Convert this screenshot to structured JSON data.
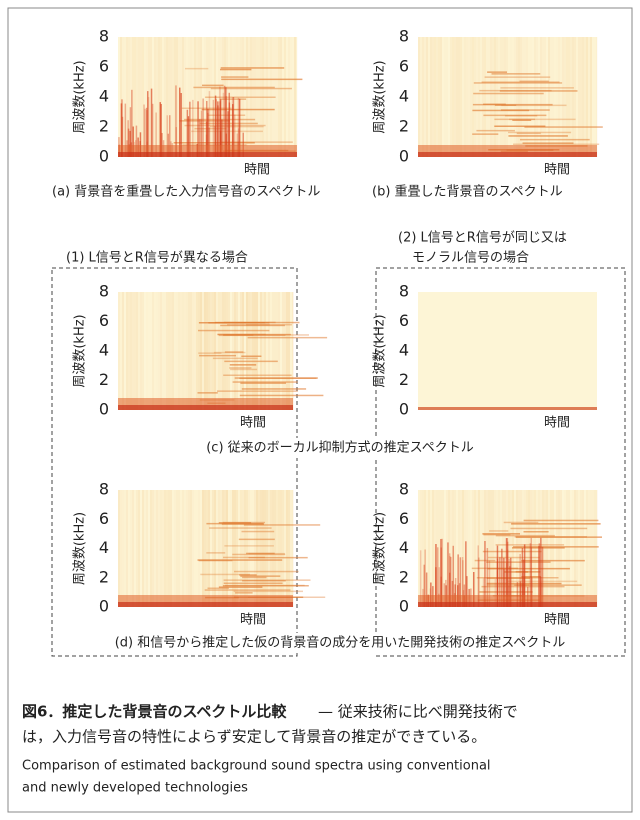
{
  "axes": {
    "y_label": "周波数(kHz)",
    "x_label": "時間",
    "yticks": [
      0,
      2,
      4,
      6,
      8
    ]
  },
  "top_captions": [
    "(a) 背景音を重畳した入力信号音のスペクトル",
    "(b) 重畳した背景音のスペクトル"
  ],
  "case_1": "(1) L信号とR信号が異なる場合",
  "case_2": [
    "(2) L信号とR信号が同じ又は",
    "モノラル信号の場合"
  ],
  "row_captions": [
    "(c) 従来のボーカル抑制方式の推定スペクトル",
    "(d) 和信号から推定した仮の背景音の成分を用いた開発技術の推定スペクトル"
  ],
  "figure_caption": {
    "label": "図6．推定した背景音のスペクトル比較",
    "lines": [
      "— 従来技術に比べ開発技術で",
      "は，入力信号音の特性によらず安定して背景音の推定ができている。"
    ]
  },
  "english_lines": [
    "Comparison of estimated background sound spectra using conventional",
    "and newly developed technologies"
  ]
}
